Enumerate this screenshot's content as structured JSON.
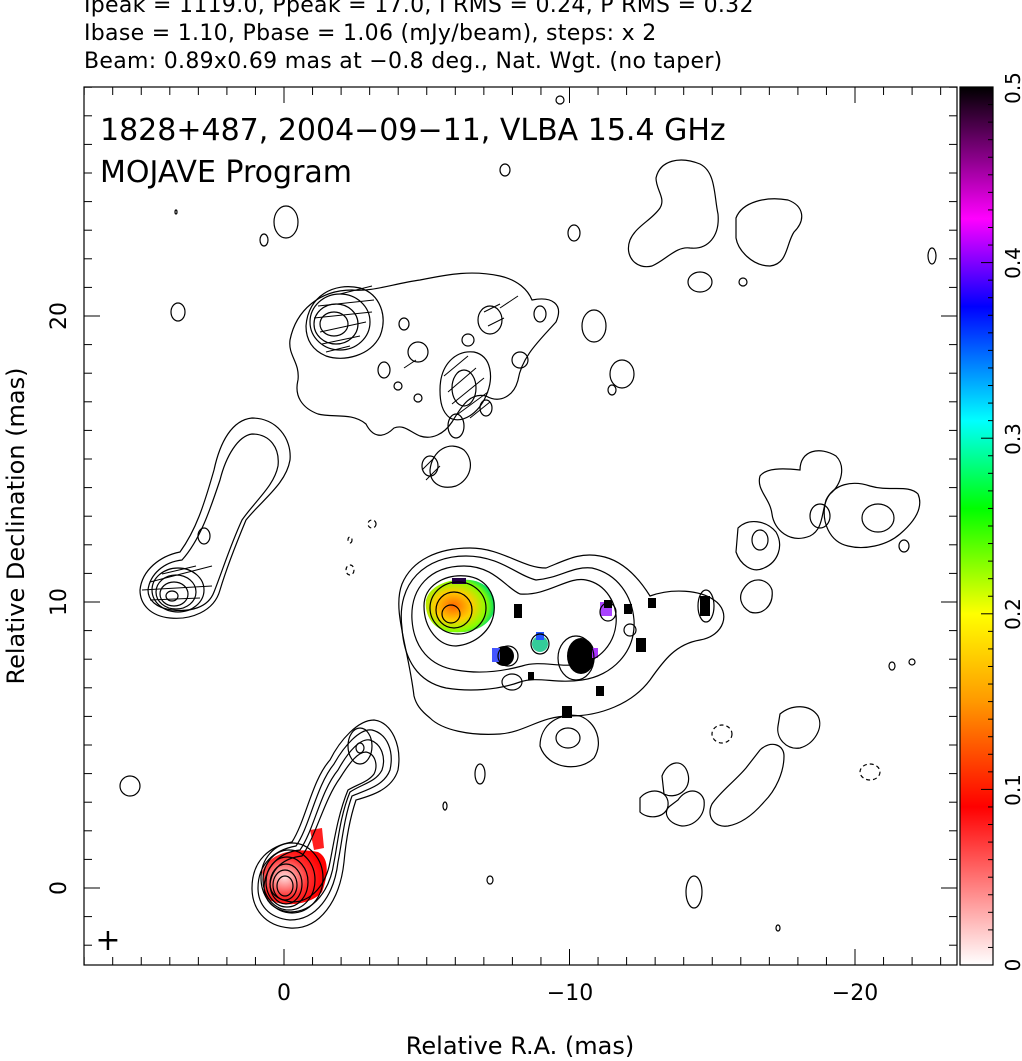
{
  "header": {
    "line1": "Ipeak = 1119.0, Ppeak = 17.0, I RMS = 0.24, P RMS = 0.32",
    "line2": "Ibase = 1.10, Pbase = 1.06 (mJy/beam), steps: x 2",
    "line3": "Beam: 0.89x0.69 mas at −0.8 deg., Nat. Wgt. (no taper)"
  },
  "plot": {
    "title_line1": "1828+487, 2004−09−11, VLBA 15.4 GHz",
    "title_line2": "MOJAVE Program",
    "xlabel": "Relative R.A. (mas)",
    "ylabel": "Relative Declination (mas)",
    "xticks": [
      "0",
      "−10",
      "−20"
    ],
    "yticks": [
      "0",
      "10",
      "20"
    ],
    "beam_marker": "+"
  },
  "colorbar": {
    "ticks": [
      "0",
      "0.1",
      "0.2",
      "0.3",
      "0.4",
      "0.5"
    ],
    "colors": [
      "#ffffff",
      "#ff0000",
      "#ffaa00",
      "#ffff00",
      "#00ff00",
      "#00ffff",
      "#0000ff",
      "#ff00ff",
      "#000000"
    ]
  }
}
